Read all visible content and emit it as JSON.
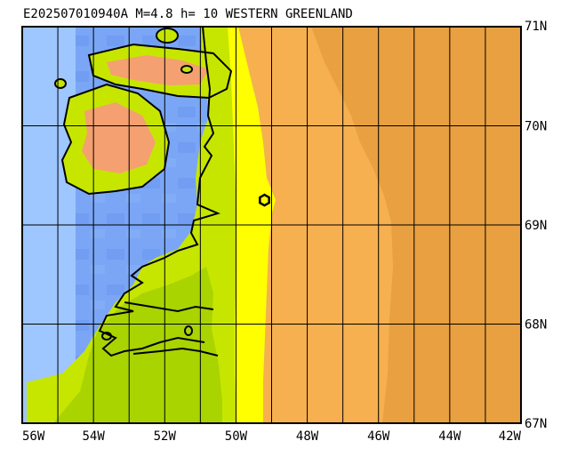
{
  "title": "E202507010940A M=4.8 h= 10 WESTERN GREENLAND",
  "map": {
    "lon_range": [
      -56,
      -42
    ],
    "lat_range": [
      67,
      71
    ],
    "lon_ticks": [
      {
        "value": -56,
        "label": "56W"
      },
      {
        "value": -54,
        "label": "54W"
      },
      {
        "value": -52,
        "label": "52W"
      },
      {
        "value": -50,
        "label": "50W"
      },
      {
        "value": -48,
        "label": "48W"
      },
      {
        "value": -46,
        "label": "46W"
      },
      {
        "value": -44,
        "label": "44W"
      },
      {
        "value": -42,
        "label": "42W"
      }
    ],
    "lat_ticks": [
      {
        "value": 67,
        "label": "67N"
      },
      {
        "value": 68,
        "label": "68N"
      },
      {
        "value": 69,
        "label": "69N"
      },
      {
        "value": 70,
        "label": "70N"
      },
      {
        "value": 71,
        "label": "71N"
      }
    ],
    "grid_lines_lon": [
      -55,
      -54,
      -53,
      -52,
      -51,
      -50,
      -49,
      -48,
      -47,
      -46,
      -45,
      -44,
      -43
    ],
    "grid_lines_lat": [
      68,
      69,
      70
    ],
    "epicenter": {
      "lon": -49.2,
      "lat": 69.25,
      "marker": "hexagon"
    },
    "colors": {
      "deep_water": "#5e8ef0",
      "mid_water": "#7aa6f5",
      "shallow_water": "#9ec6ff",
      "land_low": "#a9d400",
      "land_mid": "#c6e600",
      "land_high": "#f0f000",
      "ice_edge": "#ffff00",
      "ice_sheet": "#f7b050",
      "ice_high": "#e8a040",
      "mountain": "#f4a070"
    }
  }
}
